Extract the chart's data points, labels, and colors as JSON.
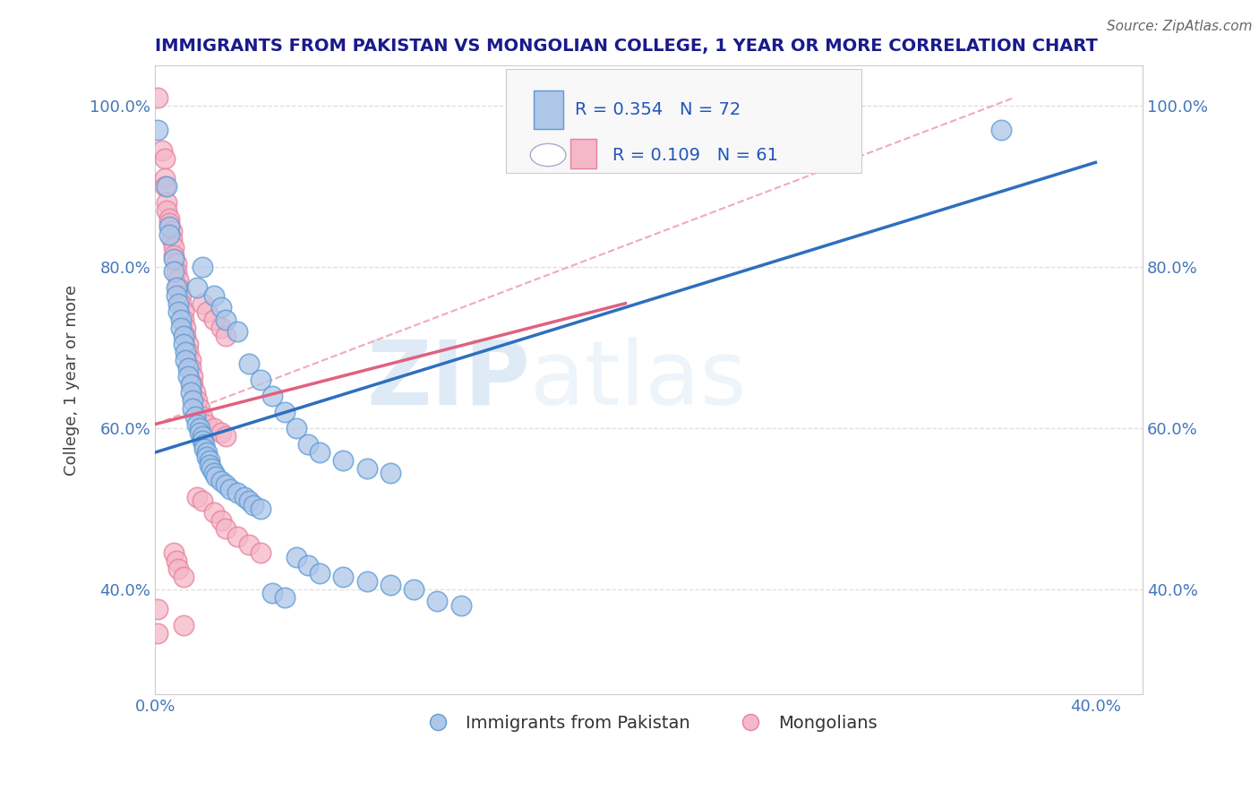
{
  "title": "IMMIGRANTS FROM PAKISTAN VS MONGOLIAN COLLEGE, 1 YEAR OR MORE CORRELATION CHART",
  "source": "Source: ZipAtlas.com",
  "ylabel": "College, 1 year or more",
  "xlim": [
    0.0,
    0.42
  ],
  "ylim": [
    0.27,
    1.05
  ],
  "x_ticks": [
    0.0,
    0.1,
    0.2,
    0.3,
    0.4
  ],
  "x_tick_labels": [
    "0.0%",
    "",
    "",
    "",
    "40.0%"
  ],
  "y_ticks": [
    0.4,
    0.6,
    0.8,
    1.0
  ],
  "y_tick_labels": [
    "40.0%",
    "60.0%",
    "80.0%",
    "100.0%"
  ],
  "watermark_zip": "ZIP",
  "watermark_atlas": "atlas",
  "blue_color": "#aec6e8",
  "pink_color": "#f4b8c8",
  "blue_edge": "#5b9bd5",
  "pink_edge": "#e87fa0",
  "blue_line_color": "#2e6fbe",
  "pink_line_color": "#e06080",
  "dashed_line_color": "#f0aabb",
  "title_color": "#1a1a8c",
  "tick_color": "#4477bb",
  "grid_color": "#dddddd",
  "legend_text_color": "#2255bb",
  "source_color": "#666666",
  "blue_line_x": [
    0.0,
    0.4
  ],
  "blue_line_y": [
    0.57,
    0.93
  ],
  "pink_line_x": [
    0.0,
    0.2
  ],
  "pink_line_y": [
    0.605,
    0.755
  ],
  "dashed_line_x": [
    0.0,
    0.365
  ],
  "dashed_line_y": [
    0.605,
    1.01
  ],
  "blue_scatter": [
    [
      0.001,
      0.97
    ],
    [
      0.005,
      0.9
    ],
    [
      0.006,
      0.85
    ],
    [
      0.006,
      0.84
    ],
    [
      0.008,
      0.81
    ],
    [
      0.008,
      0.795
    ],
    [
      0.009,
      0.775
    ],
    [
      0.009,
      0.765
    ],
    [
      0.01,
      0.755
    ],
    [
      0.01,
      0.745
    ],
    [
      0.011,
      0.735
    ],
    [
      0.011,
      0.725
    ],
    [
      0.012,
      0.715
    ],
    [
      0.012,
      0.705
    ],
    [
      0.013,
      0.695
    ],
    [
      0.013,
      0.685
    ],
    [
      0.014,
      0.675
    ],
    [
      0.014,
      0.665
    ],
    [
      0.015,
      0.655
    ],
    [
      0.015,
      0.645
    ],
    [
      0.016,
      0.635
    ],
    [
      0.016,
      0.625
    ],
    [
      0.017,
      0.615
    ],
    [
      0.018,
      0.605
    ],
    [
      0.019,
      0.6
    ],
    [
      0.019,
      0.595
    ],
    [
      0.02,
      0.59
    ],
    [
      0.02,
      0.585
    ],
    [
      0.021,
      0.58
    ],
    [
      0.021,
      0.575
    ],
    [
      0.022,
      0.57
    ],
    [
      0.022,
      0.565
    ],
    [
      0.023,
      0.56
    ],
    [
      0.023,
      0.555
    ],
    [
      0.024,
      0.55
    ],
    [
      0.025,
      0.545
    ],
    [
      0.026,
      0.54
    ],
    [
      0.028,
      0.535
    ],
    [
      0.03,
      0.53
    ],
    [
      0.032,
      0.525
    ],
    [
      0.035,
      0.52
    ],
    [
      0.038,
      0.515
    ],
    [
      0.04,
      0.51
    ],
    [
      0.042,
      0.505
    ],
    [
      0.045,
      0.5
    ],
    [
      0.018,
      0.775
    ],
    [
      0.02,
      0.8
    ],
    [
      0.025,
      0.765
    ],
    [
      0.028,
      0.75
    ],
    [
      0.03,
      0.735
    ],
    [
      0.035,
      0.72
    ],
    [
      0.04,
      0.68
    ],
    [
      0.045,
      0.66
    ],
    [
      0.05,
      0.64
    ],
    [
      0.055,
      0.62
    ],
    [
      0.06,
      0.6
    ],
    [
      0.065,
      0.58
    ],
    [
      0.07,
      0.57
    ],
    [
      0.08,
      0.56
    ],
    [
      0.09,
      0.55
    ],
    [
      0.1,
      0.545
    ],
    [
      0.06,
      0.44
    ],
    [
      0.065,
      0.43
    ],
    [
      0.07,
      0.42
    ],
    [
      0.08,
      0.415
    ],
    [
      0.09,
      0.41
    ],
    [
      0.1,
      0.405
    ],
    [
      0.11,
      0.4
    ],
    [
      0.05,
      0.395
    ],
    [
      0.055,
      0.39
    ],
    [
      0.12,
      0.385
    ],
    [
      0.13,
      0.38
    ],
    [
      0.36,
      0.97
    ]
  ],
  "pink_scatter": [
    [
      0.001,
      1.01
    ],
    [
      0.003,
      0.945
    ],
    [
      0.004,
      0.935
    ],
    [
      0.004,
      0.91
    ],
    [
      0.004,
      0.9
    ],
    [
      0.005,
      0.88
    ],
    [
      0.005,
      0.87
    ],
    [
      0.006,
      0.86
    ],
    [
      0.006,
      0.855
    ],
    [
      0.007,
      0.845
    ],
    [
      0.007,
      0.835
    ],
    [
      0.008,
      0.825
    ],
    [
      0.008,
      0.815
    ],
    [
      0.009,
      0.805
    ],
    [
      0.009,
      0.795
    ],
    [
      0.01,
      0.785
    ],
    [
      0.01,
      0.775
    ],
    [
      0.011,
      0.765
    ],
    [
      0.011,
      0.755
    ],
    [
      0.012,
      0.745
    ],
    [
      0.012,
      0.735
    ],
    [
      0.013,
      0.725
    ],
    [
      0.013,
      0.715
    ],
    [
      0.014,
      0.705
    ],
    [
      0.014,
      0.695
    ],
    [
      0.015,
      0.685
    ],
    [
      0.015,
      0.675
    ],
    [
      0.016,
      0.665
    ],
    [
      0.016,
      0.655
    ],
    [
      0.017,
      0.645
    ],
    [
      0.018,
      0.635
    ],
    [
      0.019,
      0.625
    ],
    [
      0.02,
      0.615
    ],
    [
      0.022,
      0.605
    ],
    [
      0.025,
      0.6
    ],
    [
      0.028,
      0.595
    ],
    [
      0.03,
      0.59
    ],
    [
      0.02,
      0.755
    ],
    [
      0.022,
      0.745
    ],
    [
      0.025,
      0.735
    ],
    [
      0.028,
      0.725
    ],
    [
      0.03,
      0.715
    ],
    [
      0.018,
      0.515
    ],
    [
      0.02,
      0.51
    ],
    [
      0.025,
      0.495
    ],
    [
      0.028,
      0.485
    ],
    [
      0.03,
      0.475
    ],
    [
      0.035,
      0.465
    ],
    [
      0.04,
      0.455
    ],
    [
      0.045,
      0.445
    ],
    [
      0.008,
      0.445
    ],
    [
      0.009,
      0.435
    ],
    [
      0.01,
      0.425
    ],
    [
      0.012,
      0.415
    ],
    [
      0.001,
      0.375
    ],
    [
      0.012,
      0.355
    ],
    [
      0.001,
      0.345
    ]
  ]
}
